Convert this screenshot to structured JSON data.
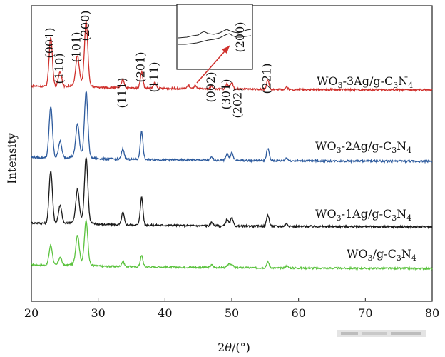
{
  "chart_data": {
    "type": "line",
    "xlabel": {
      "pre": "2",
      "theta": "θ",
      "post": "/(°)"
    },
    "ylabel": "Intensity",
    "xlim": [
      20,
      80
    ],
    "xticks": [
      "20",
      "30",
      "40",
      "50",
      "60",
      "70",
      "80"
    ],
    "grid": false,
    "series": [
      {
        "key": "wo3",
        "name": {
          "a": "WO",
          "b": "3",
          "c": "/g-C",
          "d": "3",
          "e": "N",
          "f": "4"
        },
        "color": "#5cc33f",
        "baseline": 0.08,
        "peaks": [
          [
            22.9,
            0.4
          ],
          [
            24.3,
            0.16
          ],
          [
            26.9,
            0.55
          ],
          [
            28.2,
            0.85
          ],
          [
            33.7,
            0.1
          ],
          [
            36.5,
            0.22
          ],
          [
            47.0,
            0.05
          ],
          [
            49.5,
            0.06
          ],
          [
            50.0,
            0.07
          ],
          [
            55.4,
            0.12
          ],
          [
            58.2,
            0.04
          ]
        ]
      },
      {
        "key": "ag1",
        "name": {
          "a": "WO",
          "b": "3",
          "c": "-1Ag/g-C",
          "d": "3",
          "e": "N",
          "f": "4"
        },
        "color": "#1a1a1a",
        "baseline": 0.08,
        "peaks": [
          [
            22.9,
            0.95
          ],
          [
            24.3,
            0.32
          ],
          [
            26.9,
            0.55
          ],
          [
            28.2,
            1.15
          ],
          [
            33.7,
            0.22
          ],
          [
            36.5,
            0.5
          ],
          [
            47.0,
            0.06
          ],
          [
            49.3,
            0.12
          ],
          [
            50.0,
            0.14
          ],
          [
            55.4,
            0.2
          ],
          [
            58.2,
            0.05
          ]
        ]
      },
      {
        "key": "ag2",
        "name": {
          "a": "WO",
          "b": "3",
          "c": "-2Ag/g-C",
          "d": "3",
          "e": "N",
          "f": "4"
        },
        "color": "#2f5c9e",
        "baseline": 0.08,
        "peaks": [
          [
            22.9,
            0.92
          ],
          [
            24.3,
            0.3
          ],
          [
            26.9,
            0.55
          ],
          [
            28.2,
            1.15
          ],
          [
            33.7,
            0.18
          ],
          [
            36.5,
            0.5
          ],
          [
            47.0,
            0.05
          ],
          [
            49.3,
            0.12
          ],
          [
            50.0,
            0.14
          ],
          [
            55.4,
            0.22
          ],
          [
            58.2,
            0.05
          ]
        ]
      },
      {
        "key": "ag3",
        "name": {
          "a": "WO",
          "b": "3",
          "c": "-3Ag/g-C",
          "d": "3",
          "e": "N",
          "f": "4"
        },
        "color": "#d0312d",
        "baseline": 0.08,
        "peaks": [
          [
            22.9,
            0.9
          ],
          [
            24.3,
            0.28
          ],
          [
            26.9,
            0.52
          ],
          [
            28.2,
            1.15
          ],
          [
            33.7,
            0.16
          ],
          [
            36.5,
            0.3
          ],
          [
            38.5,
            0.1
          ],
          [
            43.5,
            0.06
          ],
          [
            44.5,
            0.05
          ],
          [
            47.0,
            0.05
          ],
          [
            49.3,
            0.1
          ],
          [
            50.0,
            0.12
          ],
          [
            55.4,
            0.16
          ],
          [
            58.2,
            0.04
          ]
        ]
      }
    ],
    "peak_labels": [
      {
        "text": "(001)",
        "x": 22.9
      },
      {
        "text": "(110)",
        "x": 24.3
      },
      {
        "text": "(101)",
        "x": 26.9
      },
      {
        "text": "(200)",
        "x": 28.2
      },
      {
        "text": "(111)",
        "x": 33.7
      },
      {
        "text": "(201)",
        "x": 36.5
      },
      {
        "text": "(111)",
        "x": 38.5
      },
      {
        "text": "(002)",
        "x": 47.0
      },
      {
        "text": "(301)",
        "x": 49.3
      },
      {
        "text": "(202)",
        "x": 51.0
      },
      {
        "text": "(221)",
        "x": 55.4
      }
    ],
    "inset": {
      "label": "(200)"
    }
  },
  "watermark": {
    "label": "logo"
  }
}
